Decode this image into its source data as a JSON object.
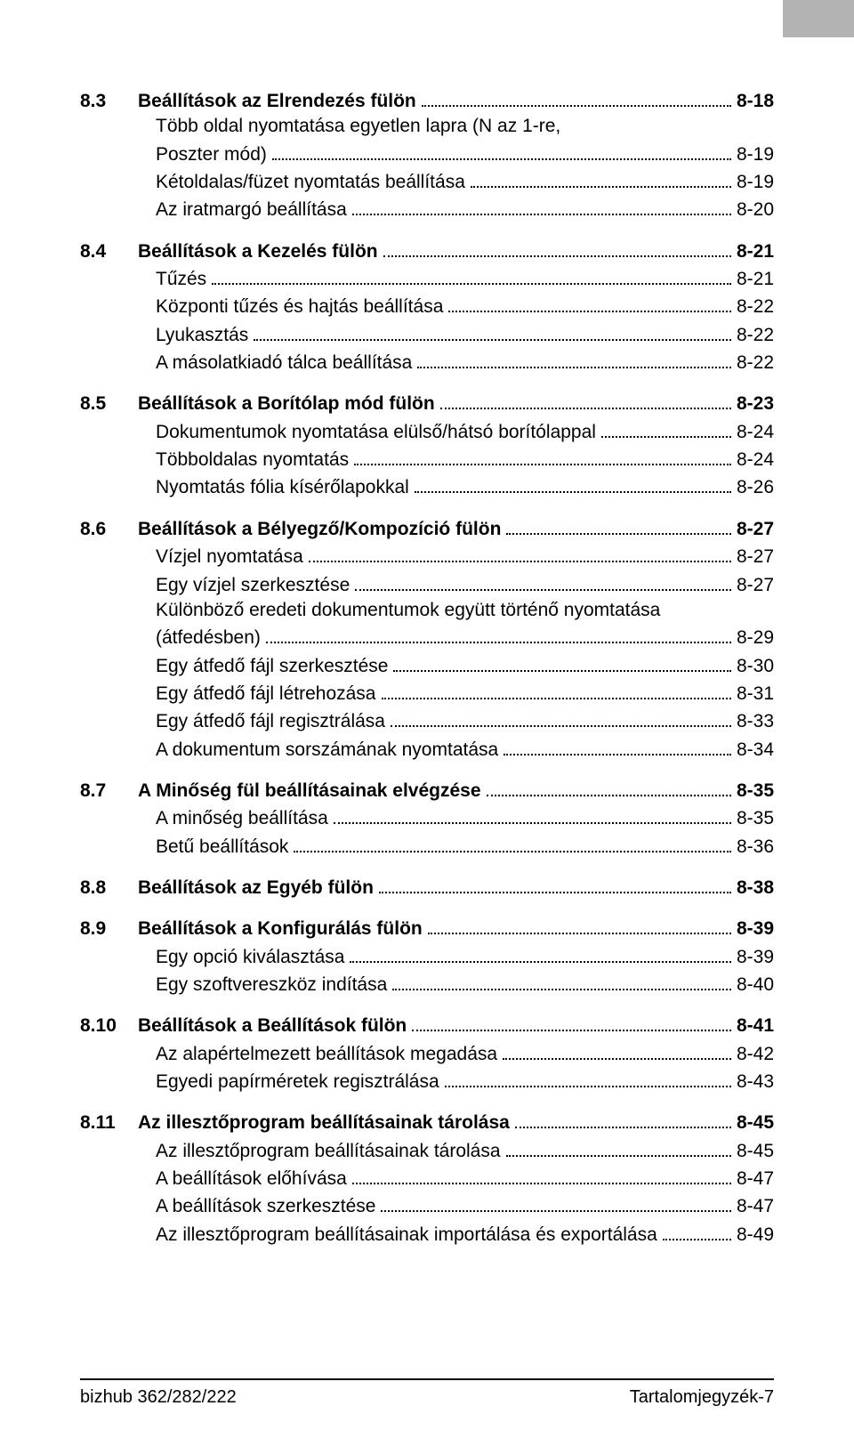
{
  "footer": {
    "left": "bizhub 362/282/222",
    "right": "Tartalomjegyzék-7"
  },
  "sections": [
    {
      "num": "8.3",
      "title": "Beállítások az Elrendezés fülön",
      "page": "8-18",
      "subs": [
        {
          "label_lines": [
            "Több oldal nyomtatása egyetlen lapra (N az 1-re,",
            "Poszter mód)"
          ],
          "page": "8-19"
        },
        {
          "label": "Kétoldalas/füzet nyomtatás beállítása",
          "page": "8-19"
        },
        {
          "label": "Az iratmargó beállítása",
          "page": "8-20"
        }
      ]
    },
    {
      "num": "8.4",
      "title": "Beállítások a Kezelés fülön",
      "page": "8-21",
      "subs": [
        {
          "label": "Tűzés",
          "page": "8-21"
        },
        {
          "label": "Központi tűzés és hajtás beállítása",
          "page": "8-22"
        },
        {
          "label": "Lyukasztás",
          "page": "8-22"
        },
        {
          "label": "A másolatkiadó tálca beállítása",
          "page": "8-22"
        }
      ]
    },
    {
      "num": "8.5",
      "title": "Beállítások a Borítólap mód fülön",
      "page": "8-23",
      "subs": [
        {
          "label": "Dokumentumok nyomtatása elülső/hátsó borítólappal",
          "page": "8-24"
        },
        {
          "label": "Többoldalas nyomtatás",
          "page": "8-24"
        },
        {
          "label": "Nyomtatás fólia kísérőlapokkal",
          "page": "8-26"
        }
      ]
    },
    {
      "num": "8.6",
      "title": "Beállítások a Bélyegző/Kompozíció fülön",
      "page": "8-27",
      "subs": [
        {
          "label": "Vízjel nyomtatása",
          "page": "8-27"
        },
        {
          "label": "Egy vízjel szerkesztése",
          "page": "8-27"
        },
        {
          "label_lines": [
            "Különböző eredeti dokumentumok együtt történő nyomtatása",
            "(átfedésben)"
          ],
          "page": "8-29"
        },
        {
          "label": "Egy átfedő fájl szerkesztése",
          "page": "8-30"
        },
        {
          "label": "Egy átfedő fájl létrehozása",
          "page": "8-31"
        },
        {
          "label": "Egy átfedő fájl regisztrálása",
          "page": "8-33"
        },
        {
          "label": "A dokumentum sorszámának nyomtatása",
          "page": "8-34"
        }
      ]
    },
    {
      "num": "8.7",
      "title": "A Minőség fül beállításainak elvégzése",
      "page": "8-35",
      "subs": [
        {
          "label": "A minőség beállítása",
          "page": "8-35"
        },
        {
          "label": "Betű beállítások",
          "page": "8-36"
        }
      ]
    },
    {
      "num": "8.8",
      "title": "Beállítások az Egyéb fülön",
      "page": "8-38",
      "subs": []
    },
    {
      "num": "8.9",
      "title": "Beállítások a Konfigurálás fülön",
      "page": "8-39",
      "subs": [
        {
          "label": "Egy opció kiválasztása",
          "page": "8-39"
        },
        {
          "label": "Egy szoftvereszköz indítása",
          "page": "8-40"
        }
      ]
    },
    {
      "num": "8.10",
      "title": "Beállítások a Beállítások fülön",
      "page": "8-41",
      "subs": [
        {
          "label": "Az alapértelmezett beállítások megadása",
          "page": "8-42"
        },
        {
          "label": "Egyedi papírméretek regisztrálása",
          "page": "8-43"
        }
      ]
    },
    {
      "num": "8.11",
      "title": "Az illesztőprogram beállításainak tárolása",
      "page": "8-45",
      "subs": [
        {
          "label": "Az illesztőprogram beállításainak tárolása",
          "page": "8-45"
        },
        {
          "label": "A beállítások előhívása",
          "page": "8-47"
        },
        {
          "label": "A beállítások szerkesztése",
          "page": "8-47"
        },
        {
          "label": "Az illesztőprogram beállításainak importálása és exportálása",
          "page": "8-49"
        }
      ]
    }
  ]
}
